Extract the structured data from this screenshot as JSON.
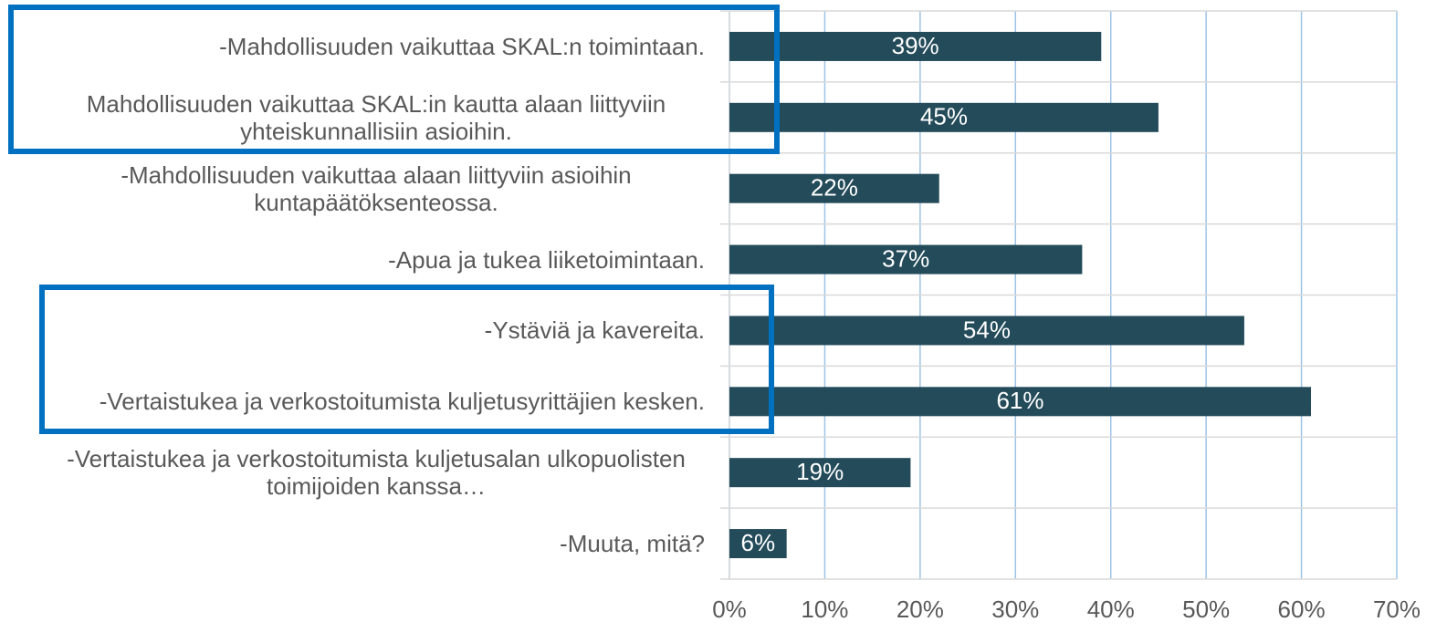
{
  "chart_data": {
    "type": "bar",
    "orientation": "horizontal",
    "categories": [
      "-Mahdollisuuden vaikuttaa SKAL:n toimintaan.",
      "Mahdollisuuden vaikuttaa SKAL:in kautta alaan liittyviin yhteiskunnallisiin asioihin.",
      "-Mahdollisuuden vaikuttaa alaan liittyviin asioihin kuntapäätöksenteossa.",
      "-Apua ja tukea liiketoimintaan.",
      "-Ystäviä ja kavereita.",
      "-Vertaistukea ja verkostoitumista kuljetusyrittäjien kesken.",
      "-Vertaistukea ja verkostoitumista kuljetusalan ulkopuolisten toimijoiden kanssa…",
      "-Muuta, mitä?"
    ],
    "values": [
      39,
      45,
      22,
      37,
      54,
      61,
      19,
      6
    ],
    "value_labels": [
      "39%",
      "45%",
      "22%",
      "37%",
      "54%",
      "61%",
      "19%",
      "6%"
    ],
    "color": "#234b5a",
    "xlim": [
      0,
      70
    ],
    "xticks": [
      {
        "value": 0,
        "label": "0%"
      },
      {
        "value": 10,
        "label": "10%"
      },
      {
        "value": 20,
        "label": "20%"
      },
      {
        "value": 30,
        "label": "30%"
      },
      {
        "value": 40,
        "label": "40%"
      },
      {
        "value": 50,
        "label": "50%"
      },
      {
        "value": 60,
        "label": "60%"
      },
      {
        "value": 70,
        "label": "70%"
      }
    ],
    "grid": true
  }
}
